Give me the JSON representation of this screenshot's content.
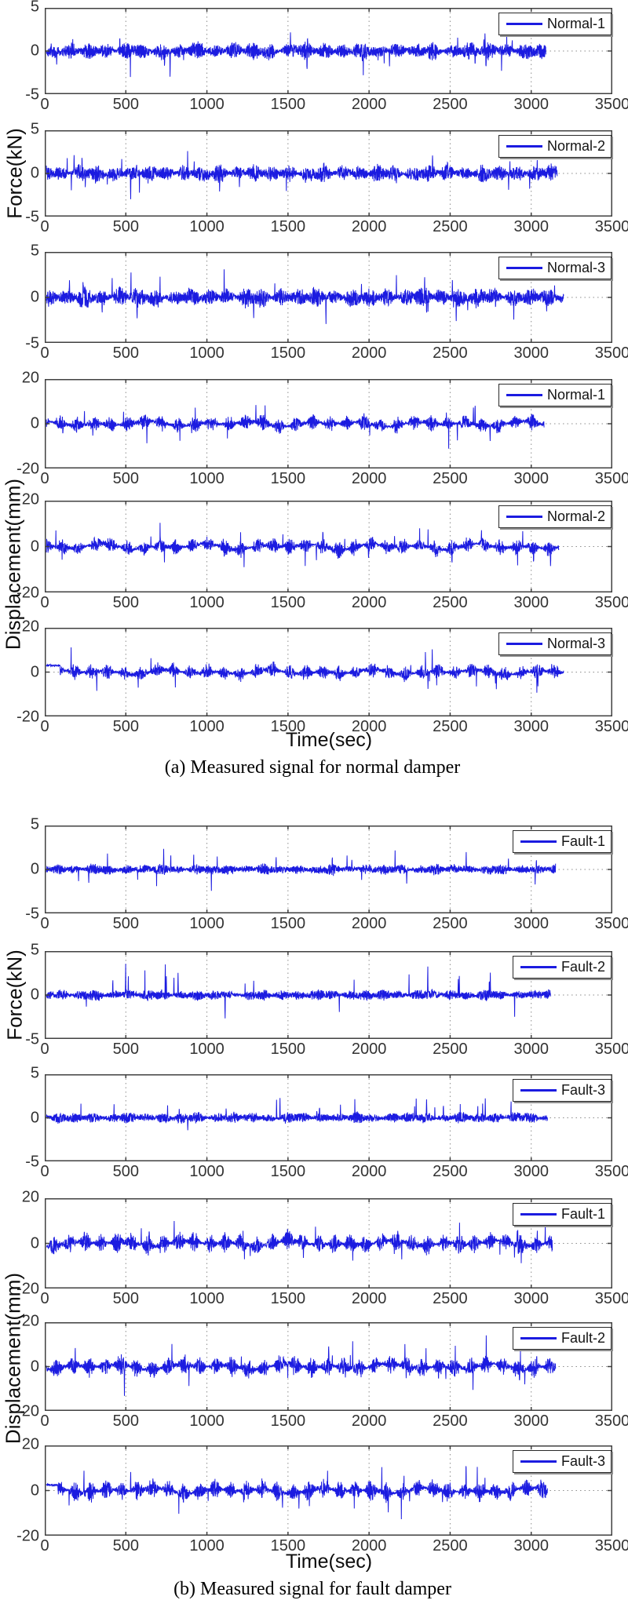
{
  "figure": {
    "ylabel_force": "Force(kN)",
    "ylabel_disp": "Displacement(mm)",
    "xlabel": "Time(sec)",
    "caption_a": "(a) Measured signal for normal damper",
    "caption_b": "(b) Measured signal for fault damper"
  },
  "chart_data": {
    "type": "line",
    "xlim": [
      0,
      3500
    ],
    "xticks": [
      0,
      500,
      1000,
      1500,
      2000,
      2500,
      3000,
      3500
    ],
    "xtick_labels": [
      "0",
      "500",
      "1000",
      "1500",
      "2000",
      "2500",
      "3000",
      "3500"
    ],
    "grid": "dotted vertical lines at each x tick plus dotted horizontal line at y=0",
    "legend_position": "top-right inside axes",
    "line_color": "#1b1be0",
    "axis_color": "#404040",
    "grid_color": "#8c8c8c",
    "tick_text_color": "#333333",
    "subplots": [
      {
        "group": "normal",
        "quantity": "force",
        "legend": "Normal-1",
        "ylim": 5,
        "ytick_labels": [
          "5",
          "0",
          "-5"
        ],
        "end_time": 3090,
        "typical_amplitude": 1.0,
        "peak_amplitude": 3.2,
        "params": {
          "seed": 101,
          "base": 0.55,
          "burstAmp": 0.75,
          "burstPeriod": 112,
          "burstSharp": 1.3,
          "wander": 0.12,
          "spikeN": 26,
          "spikeMin": 1.2,
          "spikeMax": 2.6,
          "posFrac": 0.5
        }
      },
      {
        "group": "normal",
        "quantity": "force",
        "legend": "Normal-2",
        "ylim": 5,
        "ytick_labels": [
          "5",
          "0",
          "-5"
        ],
        "end_time": 3160,
        "typical_amplitude": 1.0,
        "peak_amplitude": 3.0,
        "params": {
          "seed": 102,
          "base": 0.55,
          "burstAmp": 0.75,
          "burstPeriod": 108,
          "burstSharp": 1.3,
          "wander": 0.12,
          "spikeN": 24,
          "spikeMin": 1.2,
          "spikeMax": 2.9,
          "posFrac": 0.45
        }
      },
      {
        "group": "normal",
        "quantity": "force",
        "legend": "Normal-3",
        "ylim": 5,
        "ytick_labels": [
          "5",
          "0",
          "-5"
        ],
        "end_time": 3200,
        "typical_amplitude": 1.1,
        "peak_amplitude": 3.5,
        "params": {
          "seed": 103,
          "base": 0.58,
          "burstAmp": 0.8,
          "burstPeriod": 110,
          "burstSharp": 1.3,
          "wander": 0.12,
          "spikeN": 26,
          "spikeMin": 1.3,
          "spikeMax": 3.1,
          "posFrac": 0.45
        }
      },
      {
        "group": "normal",
        "quantity": "displacement",
        "legend": "Normal-1",
        "ylim": 20,
        "ytick_labels": [
          "20",
          "0",
          "-20"
        ],
        "end_time": 3080,
        "typical_amplitude": 4,
        "peak_amplitude": 13,
        "params": {
          "seed": 301,
          "base": 1.0,
          "burstAmp": 3.6,
          "burstPeriod": 104,
          "burstSharp": 2.2,
          "wander": 1.2,
          "spikeN": 20,
          "spikeMin": 4,
          "spikeMax": 9,
          "posFrac": 0.5
        }
      },
      {
        "group": "normal",
        "quantity": "displacement",
        "legend": "Normal-2",
        "ylim": 20,
        "ytick_labels": [
          "20",
          "0",
          "-20"
        ],
        "end_time": 3170,
        "typical_amplitude": 4,
        "peak_amplitude": 13,
        "params": {
          "seed": 302,
          "base": 1.0,
          "burstAmp": 3.6,
          "burstPeriod": 100,
          "burstSharp": 2.2,
          "wander": 1.4,
          "spikeN": 22,
          "spikeMin": 4,
          "spikeMax": 10.5,
          "posFrac": 0.5
        }
      },
      {
        "group": "normal",
        "quantity": "displacement",
        "legend": "Normal-3",
        "ylim": 20,
        "ytick_labels": [
          "20",
          "0",
          "-20"
        ],
        "end_time": 3200,
        "typical_amplitude": 4,
        "peak_amplitude": 11,
        "params": {
          "seed": 303,
          "base": 1.0,
          "burstAmp": 3.4,
          "burstPeriod": 102,
          "burstSharp": 2.2,
          "wander": 1.2,
          "spikeN": 20,
          "spikeMin": 4,
          "spikeMax": 9.5,
          "posFrac": 0.5,
          "leadLevel": 3,
          "leadUntil": 95
        }
      },
      {
        "group": "fault",
        "quantity": "force",
        "legend": "Fault-1",
        "ylim": 5,
        "ytick_labels": [
          "5",
          "0",
          "-5"
        ],
        "end_time": 3150,
        "typical_amplitude": 0.7,
        "peak_amplitude": 2.6,
        "params": {
          "seed": 201,
          "base": 0.42,
          "burstAmp": 0.35,
          "burstPeriod": 106,
          "burstSharp": 1.2,
          "wander": 0.08,
          "spikeN": 22,
          "spikeMin": 1.0,
          "spikeMax": 2.4,
          "posFrac": 0.8
        }
      },
      {
        "group": "fault",
        "quantity": "force",
        "legend": "Fault-2",
        "ylim": 5,
        "ytick_labels": [
          "5",
          "0",
          "-5"
        ],
        "end_time": 3120,
        "typical_amplitude": 0.7,
        "peak_amplitude": 3.3,
        "params": {
          "seed": 202,
          "base": 0.42,
          "burstAmp": 0.38,
          "burstPeriod": 104,
          "burstSharp": 1.2,
          "wander": 0.08,
          "spikeN": 22,
          "spikeMin": 1.0,
          "spikeMax": 3.2,
          "posFrac": 0.8
        }
      },
      {
        "group": "fault",
        "quantity": "force",
        "legend": "Fault-3",
        "ylim": 5,
        "ytick_labels": [
          "5",
          "0",
          "-5"
        ],
        "end_time": 3100,
        "typical_amplitude": 0.7,
        "peak_amplitude": 2.5,
        "params": {
          "seed": 203,
          "base": 0.42,
          "burstAmp": 0.38,
          "burstPeriod": 108,
          "burstSharp": 1.2,
          "wander": 0.08,
          "spikeN": 22,
          "spikeMin": 1.0,
          "spikeMax": 2.5,
          "posFrac": 0.8
        }
      },
      {
        "group": "fault",
        "quantity": "displacement",
        "legend": "Fault-1",
        "ylim": 20,
        "ytick_labels": [
          "20",
          "0",
          "-20"
        ],
        "end_time": 3130,
        "typical_amplitude": 5,
        "peak_amplitude": 13,
        "params": {
          "seed": 401,
          "base": 1.1,
          "burstAmp": 4.6,
          "burstPeriod": 96,
          "burstSharp": 2.0,
          "wander": 1.3,
          "spikeN": 22,
          "spikeMin": 5,
          "spikeMax": 10,
          "posFrac": 0.5
        }
      },
      {
        "group": "fault",
        "quantity": "displacement",
        "legend": "Fault-2",
        "ylim": 20,
        "ytick_labels": [
          "20",
          "0",
          "-20"
        ],
        "end_time": 3150,
        "typical_amplitude": 5,
        "peak_amplitude": 14,
        "params": {
          "seed": 402,
          "base": 1.1,
          "burstAmp": 4.6,
          "burstPeriod": 98,
          "burstSharp": 2.0,
          "wander": 1.4,
          "spikeN": 22,
          "spikeMin": 5,
          "spikeMax": 11,
          "posFrac": 0.5
        }
      },
      {
        "group": "fault",
        "quantity": "displacement",
        "legend": "Fault-3",
        "ylim": 20,
        "ytick_labels": [
          "20",
          "0",
          "-20"
        ],
        "end_time": 3100,
        "typical_amplitude": 5,
        "peak_amplitude": 13,
        "params": {
          "seed": 403,
          "base": 1.1,
          "burstAmp": 4.4,
          "burstPeriod": 96,
          "burstSharp": 2.0,
          "wander": 1.3,
          "spikeN": 22,
          "spikeMin": 5,
          "spikeMax": 10,
          "posFrac": 0.5,
          "leadLevel": 2.5,
          "leadUntil": 80
        }
      }
    ]
  }
}
